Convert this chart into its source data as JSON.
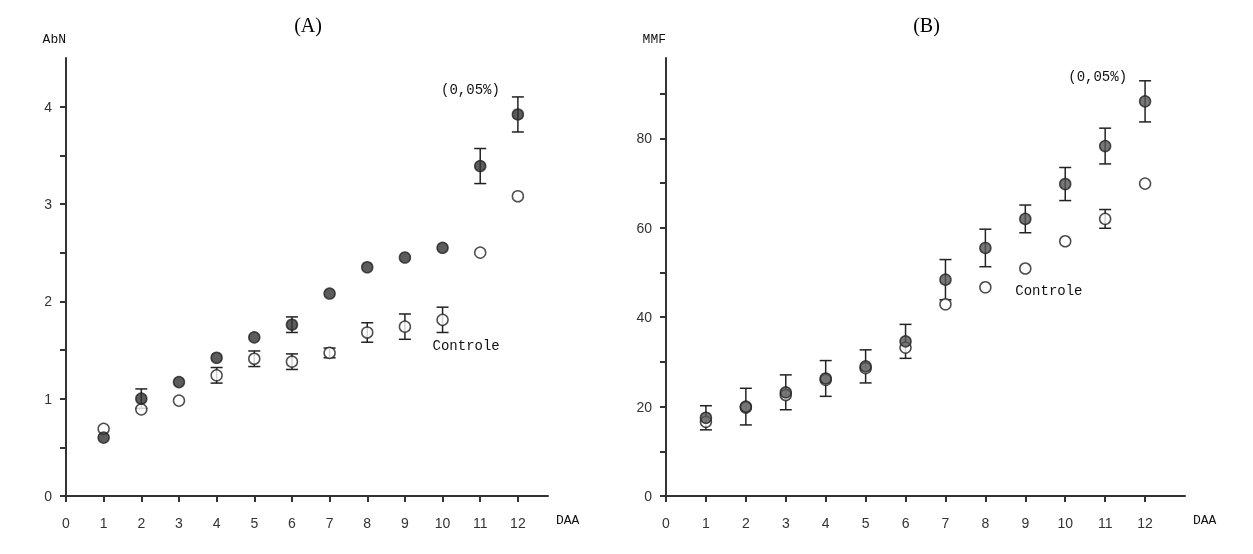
{
  "chart_data": [
    {
      "type": "scatter",
      "title": "(A)",
      "xlabel": "DAA",
      "ylabel": "AbN",
      "x": [
        1,
        2,
        3,
        4,
        5,
        6,
        7,
        8,
        9,
        10,
        11,
        12
      ],
      "xlim": [
        0,
        12.8
      ],
      "xticks": [
        0,
        1,
        2,
        3,
        4,
        5,
        6,
        7,
        8,
        9,
        10,
        11,
        12
      ],
      "ylim": [
        0,
        4.5
      ],
      "yticks": [
        0,
        {
          "value": 0.5,
          "label": null
        },
        1,
        {
          "value": 1.5,
          "label": null
        },
        2,
        {
          "value": 2.5,
          "label": null
        },
        3,
        {
          "value": 3.5,
          "label": null
        },
        4
      ],
      "grid": false,
      "legend": false,
      "marker": "circle",
      "series": [
        {
          "name": "(0,05%)",
          "color": "#333333",
          "values": [
            0.6,
            1.0,
            1.17,
            1.42,
            1.63,
            1.76,
            2.08,
            2.35,
            2.45,
            2.55,
            3.39,
            3.92
          ],
          "errors": [
            null,
            0.1,
            null,
            null,
            null,
            0.08,
            null,
            null,
            null,
            null,
            0.18,
            0.18
          ]
        },
        {
          "name": "Controle",
          "color": "#ffffff",
          "values": [
            0.69,
            0.89,
            0.98,
            1.24,
            1.41,
            1.38,
            1.47,
            1.68,
            1.74,
            1.81,
            2.5,
            3.08
          ],
          "errors": [
            null,
            null,
            null,
            0.08,
            0.08,
            0.08,
            0.05,
            0.1,
            0.13,
            0.13,
            null,
            null
          ]
        }
      ]
    },
    {
      "type": "scatter",
      "title": "(B)",
      "xlabel": "DAA",
      "ylabel": "MMF",
      "x": [
        1,
        2,
        3,
        4,
        5,
        6,
        7,
        8,
        9,
        10,
        11,
        12
      ],
      "xlim": [
        0,
        13
      ],
      "xticks": [
        0,
        1,
        2,
        3,
        4,
        5,
        6,
        7,
        8,
        9,
        10,
        11,
        12
      ],
      "ylim": [
        0,
        98
      ],
      "yticks": [
        0,
        {
          "value": 10,
          "label": null
        },
        20,
        {
          "value": 30,
          "label": null
        },
        40,
        {
          "value": 50,
          "label": null
        },
        60,
        {
          "value": 70,
          "label": null
        },
        80,
        {
          "value": 90,
          "label": null
        }
      ],
      "grid": false,
      "legend": false,
      "marker": "circle",
      "series": [
        {
          "name": "(0,05%)",
          "color": "#555555",
          "values": [
            17.5,
            20,
            23.2,
            26.3,
            29,
            34.6,
            48.4,
            55.5,
            62,
            69.8,
            78.3,
            88.3
          ],
          "errors": [
            2.7,
            4.1,
            3.9,
            4,
            3.7,
            3.8,
            4.5,
            4.2,
            3.1,
            3.7,
            4,
            4.6
          ]
        },
        {
          "name": "Controle",
          "color": "#ffffff",
          "values": [
            16.6,
            19.8,
            22.6,
            26,
            28.6,
            33.2,
            42.9,
            46.7,
            50.9,
            57,
            62,
            69.9
          ],
          "errors": [
            null,
            null,
            null,
            null,
            null,
            null,
            null,
            null,
            null,
            null,
            2.1,
            null
          ]
        }
      ]
    }
  ]
}
